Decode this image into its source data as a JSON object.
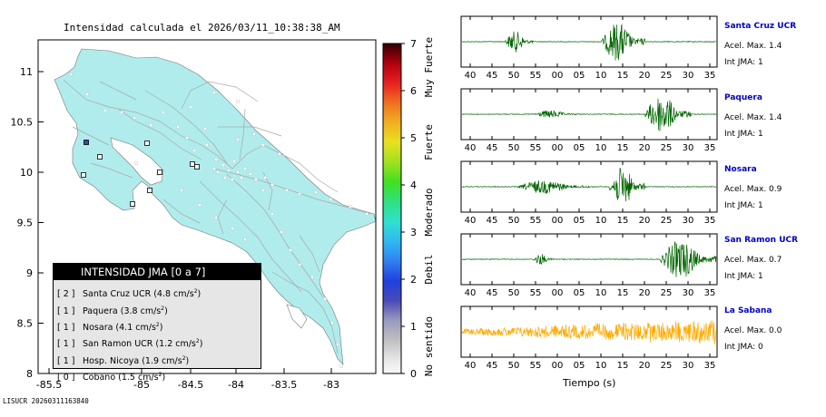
{
  "map": {
    "title": "Intensidad calculada el 2026/03/11_10:38:38_AM",
    "x_ticks": [
      "-85.5",
      "-85",
      "-84.5",
      "-84",
      "-83.5",
      "-83"
    ],
    "y_ticks": [
      "11",
      "10.5",
      "10",
      "9.5",
      "9",
      "8.5",
      "8"
    ],
    "land_color": "#b0ecec",
    "road_color": "#a8a8a8"
  },
  "colorbar": {
    "ticks": [
      "7",
      "6",
      "5",
      "4",
      "3",
      "2",
      "1",
      "0"
    ],
    "categories": [
      "Muy Fuerte",
      "Fuerte",
      "Moderado",
      "Debil",
      "No sentido"
    ]
  },
  "legend": {
    "title": "INTENSIDAD JMA [0 a 7]",
    "items": [
      {
        "level": "[ 2 ]",
        "label": "Santa Cruz UCR (4.8 cm/s",
        "unit_sup": "2",
        "close": ")"
      },
      {
        "level": "[ 1 ]",
        "label": "Paquera (3.8 cm/s",
        "unit_sup": "2",
        "close": ")"
      },
      {
        "level": "[ 1 ]",
        "label": "Nosara (4.1 cm/s",
        "unit_sup": "2",
        "close": ")"
      },
      {
        "level": "[ 1 ]",
        "label": "San Ramon UCR (1.2 cm/s",
        "unit_sup": "2",
        "close": ")"
      },
      {
        "level": "[ 1 ]",
        "label": "Hosp. Nicoya (1.9 cm/s",
        "unit_sup": "2",
        "close": ")"
      },
      {
        "level": "[ 0 ]",
        "label": "Cobano (1.5 cm/s",
        "unit_sup": "2",
        "close": ")"
      }
    ]
  },
  "footer": "LISUCR 20260311163840",
  "waveforms": {
    "x_ticks": [
      "40",
      "45",
      "50",
      "55",
      "00",
      "05",
      "10",
      "15",
      "20",
      "25",
      "30",
      "35"
    ],
    "xlabel": "Tiempo (s)",
    "stations": [
      {
        "name": "Santa Cruz UCR",
        "acc": "Acel. Max. 1.4",
        "int": "Int JMA: 1",
        "color": "#006600"
      },
      {
        "name": "Paquera",
        "acc": "Acel. Max. 1.4",
        "int": "Int JMA: 1",
        "color": "#006600"
      },
      {
        "name": "Nosara",
        "acc": "Acel. Max. 0.9",
        "int": "Int JMA: 1",
        "color": "#006600"
      },
      {
        "name": "San Ramon UCR",
        "acc": "Acel. Max. 0.7",
        "int": "Int JMA: 1",
        "color": "#006600"
      },
      {
        "name": "La Sabana",
        "acc": "Acel. Max. 0.0",
        "int": "Int JMA: 0",
        "color": "#ffaa00"
      }
    ]
  }
}
